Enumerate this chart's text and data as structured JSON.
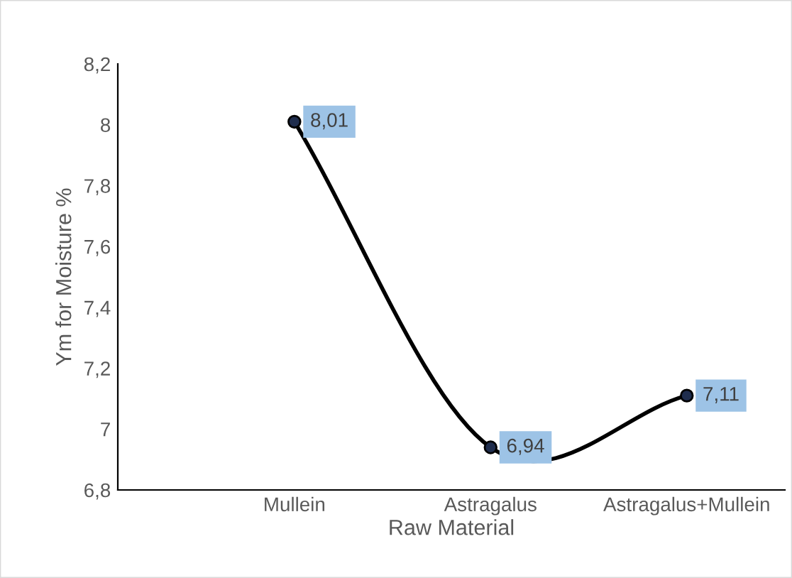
{
  "chart_data": {
    "type": "line",
    "xlabel": "Raw Material",
    "ylabel": "Ym for Moisture %",
    "categories": [
      "Mullein",
      "Astragalus",
      "Astragalus+Mullein"
    ],
    "series": [
      {
        "color": "#000000",
        "values": [
          8.01,
          6.94,
          7.11
        ],
        "value_labels": [
          "8,01",
          "6,94",
          "7,11"
        ]
      }
    ],
    "ylim": [
      6.8,
      8.2
    ],
    "yticks": [
      {
        "value": 6.8,
        "label": "6,8"
      },
      {
        "value": 7,
        "label": "7"
      },
      {
        "value": 7.2,
        "label": "7,2"
      },
      {
        "value": 7.4,
        "label": "7,4"
      },
      {
        "value": 7.6,
        "label": "7,6"
      },
      {
        "value": 7.8,
        "label": "7,8"
      },
      {
        "value": 8,
        "label": "8"
      },
      {
        "value": 8.2,
        "label": "8,2"
      }
    ],
    "grid": false,
    "legend": false,
    "marker": "circle",
    "line_style": "solid"
  }
}
